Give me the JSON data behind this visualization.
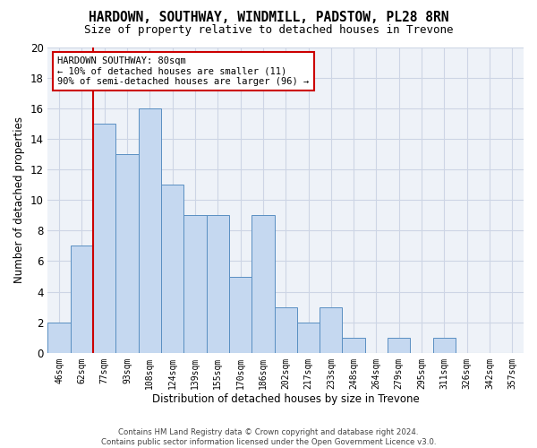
{
  "title": "HARDOWN, SOUTHWAY, WINDMILL, PADSTOW, PL28 8RN",
  "subtitle": "Size of property relative to detached houses in Trevone",
  "xlabel": "Distribution of detached houses by size in Trevone",
  "ylabel": "Number of detached properties",
  "bar_color": "#c5d8f0",
  "bar_edge_color": "#5a8fc2",
  "categories": [
    "46sqm",
    "62sqm",
    "77sqm",
    "93sqm",
    "108sqm",
    "124sqm",
    "139sqm",
    "155sqm",
    "170sqm",
    "186sqm",
    "202sqm",
    "217sqm",
    "233sqm",
    "248sqm",
    "264sqm",
    "279sqm",
    "295sqm",
    "311sqm",
    "326sqm",
    "342sqm",
    "357sqm"
  ],
  "values": [
    2,
    7,
    15,
    13,
    16,
    11,
    9,
    9,
    5,
    9,
    3,
    2,
    3,
    1,
    0,
    1,
    0,
    1,
    0,
    0,
    0
  ],
  "ylim": [
    0,
    20
  ],
  "yticks": [
    0,
    2,
    4,
    6,
    8,
    10,
    12,
    14,
    16,
    18,
    20
  ],
  "vline_color": "#cc0000",
  "annotation_text": "HARDOWN SOUTHWAY: 80sqm\n← 10% of detached houses are smaller (11)\n90% of semi-detached houses are larger (96) →",
  "annotation_box_color": "#ffffff",
  "annotation_border_color": "#cc0000",
  "footer_line1": "Contains HM Land Registry data © Crown copyright and database right 2024.",
  "footer_line2": "Contains public sector information licensed under the Open Government Licence v3.0.",
  "background_color": "#eef2f8",
  "grid_color": "#cdd5e5"
}
